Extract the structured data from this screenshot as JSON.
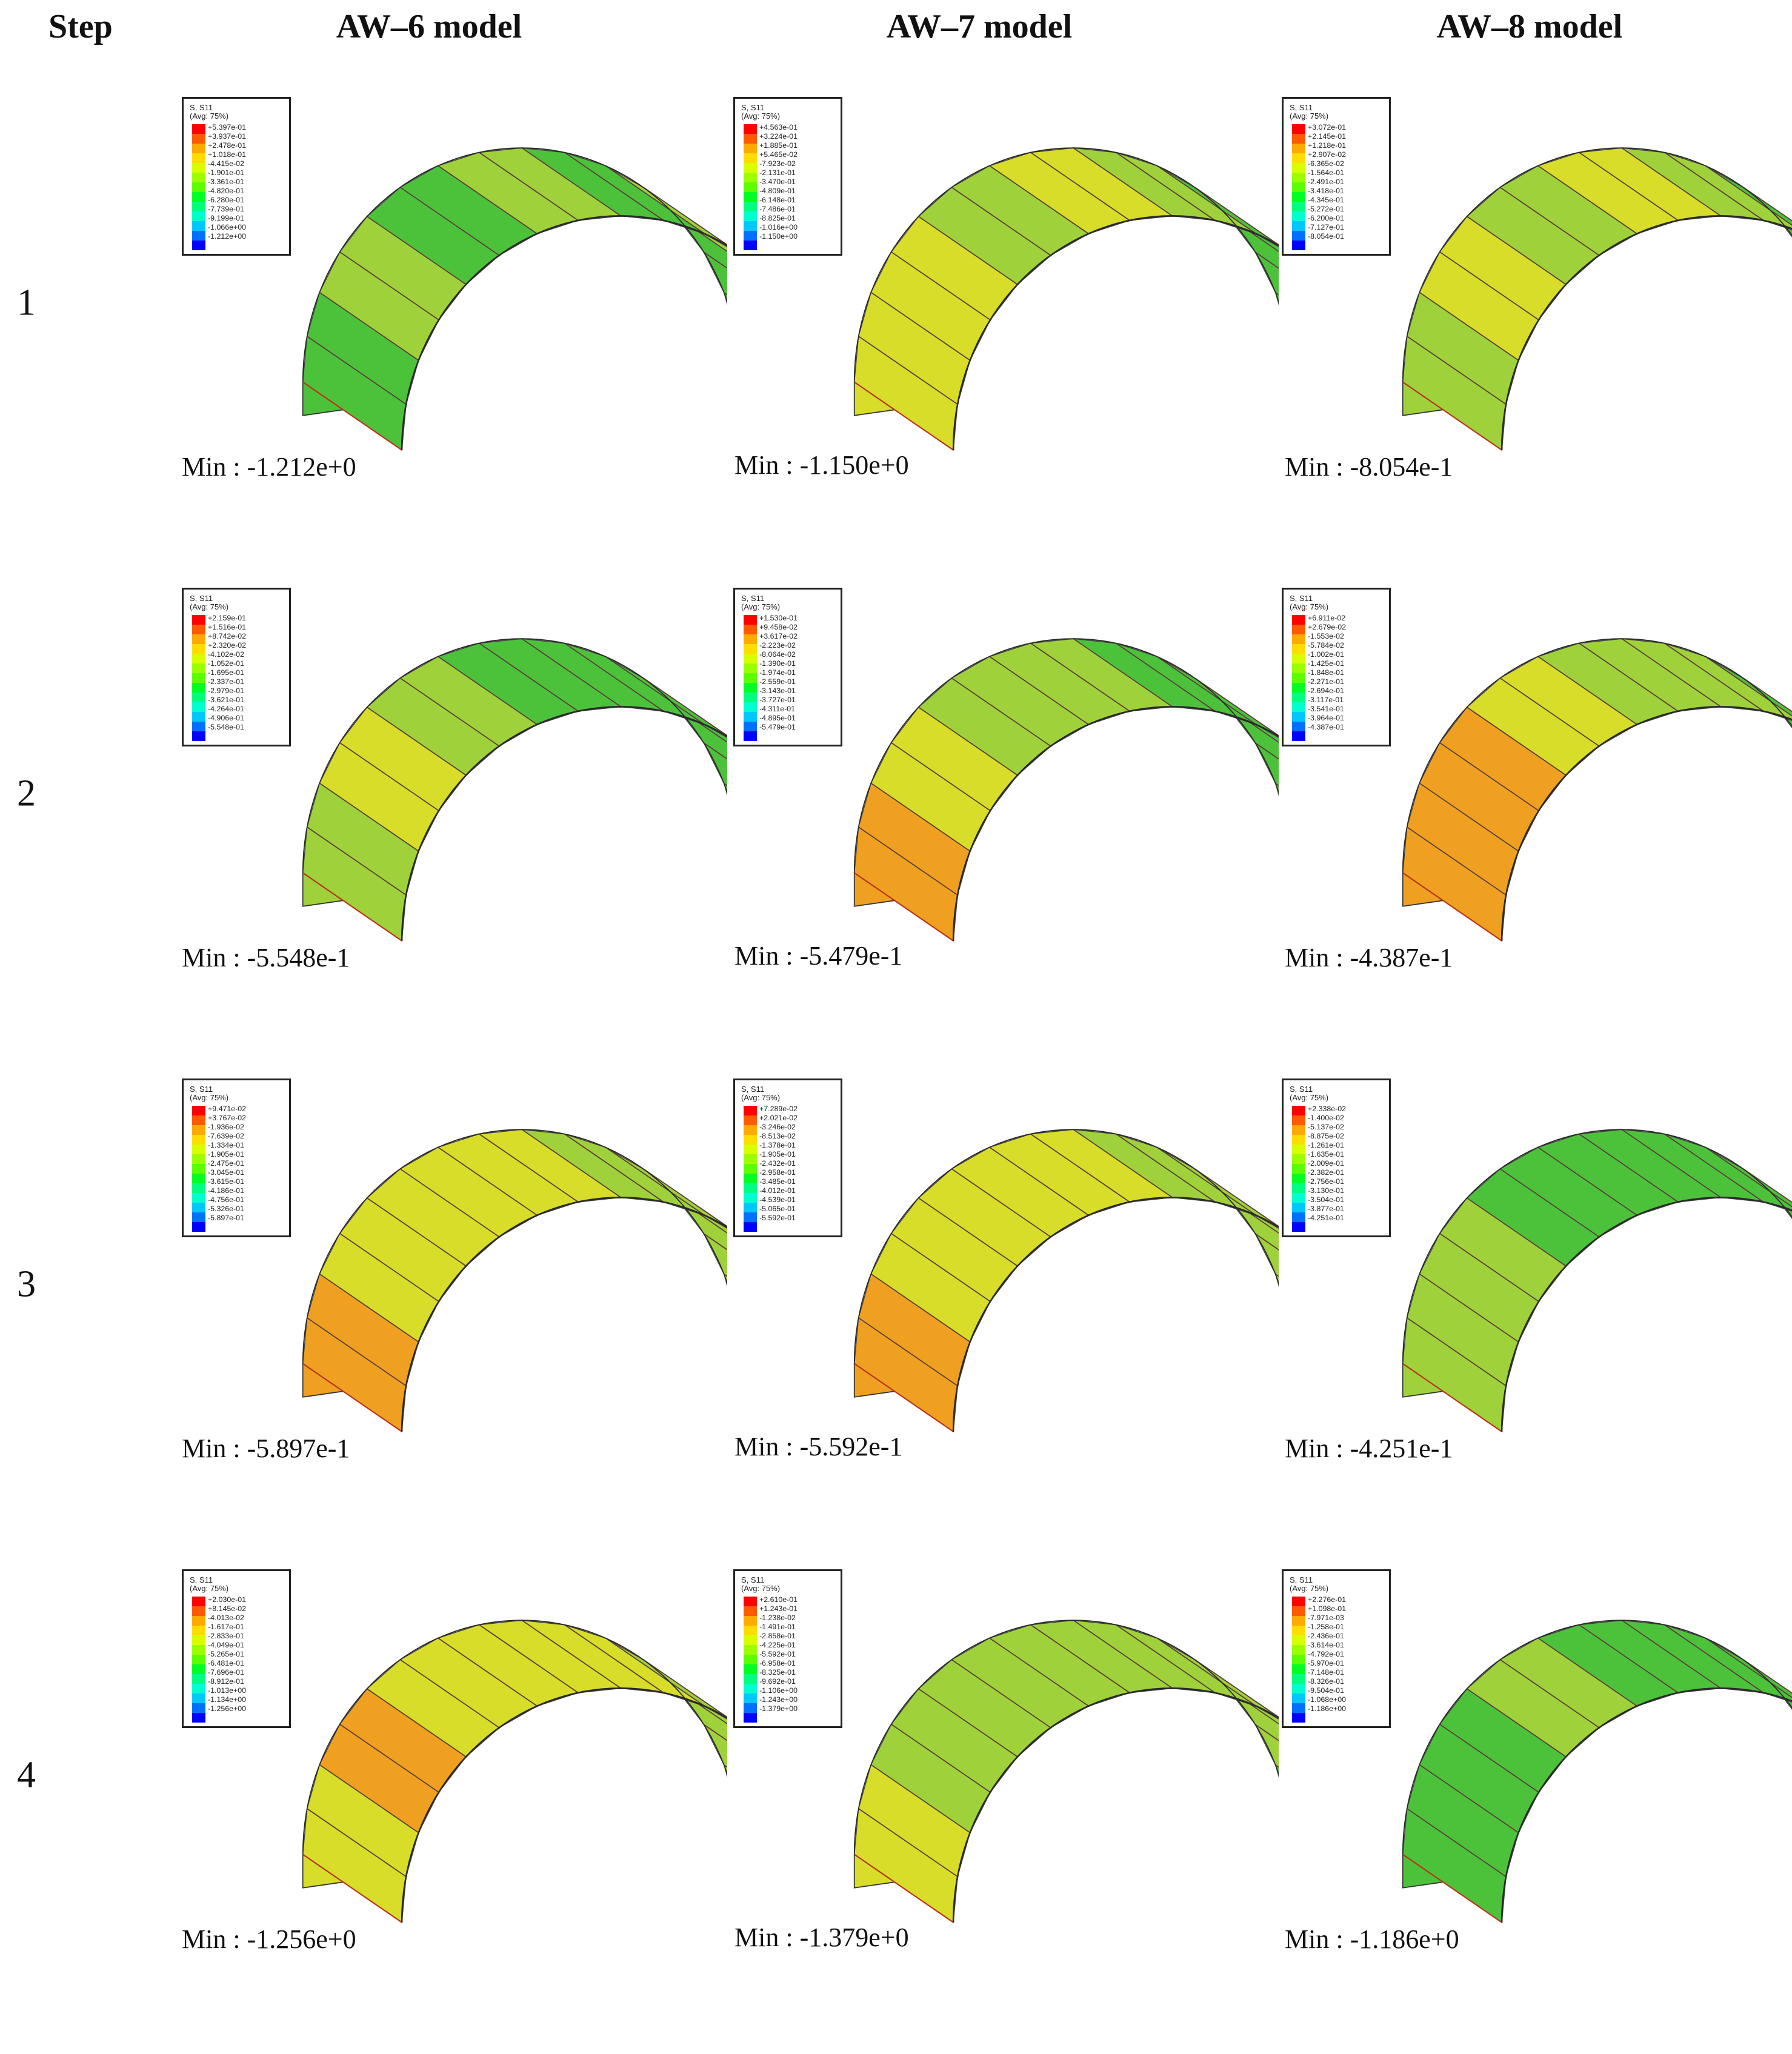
{
  "headers": {
    "step": "Step",
    "models": [
      "AW–6 model",
      "AW–7 model",
      "AW–8 model"
    ]
  },
  "legend": {
    "line1": "S, S11",
    "line2": "(Avg: 75%)",
    "colors": [
      "#ff0000",
      "#ff5a00",
      "#ffaa00",
      "#ffdd00",
      "#d8ff00",
      "#9cff00",
      "#5cff00",
      "#00ff22",
      "#00ff80",
      "#00ffd0",
      "#00c8ff",
      "#0070ff",
      "#0000ff"
    ]
  },
  "colors": {
    "face_base": "#9fd23a",
    "face_red": "#e23a12",
    "face_orange": "#f0a020",
    "face_yellow": "#d8dd2a",
    "face_green": "#4cc23b",
    "face_cyan": "#37b7a8",
    "face_blue": "#2e6fd6"
  },
  "steps": [
    {
      "label": "1",
      "cells": [
        {
          "min": "Min : -1.212e+0",
          "values": [
            "+5.397e-01",
            "+3.937e-01",
            "+2.478e-01",
            "+1.018e-01",
            "-4.415e-02",
            "-1.901e-01",
            "-3.361e-01",
            "-4.820e-01",
            "-6.280e-01",
            "-7.739e-01",
            "-9.199e-01",
            "-1.066e+00",
            "-1.212e+00"
          ]
        },
        {
          "min": "Min : -1.150e+0",
          "values": [
            "+4.563e-01",
            "+3.224e-01",
            "+1.885e-01",
            "+5.465e-02",
            "-7.923e-02",
            "-2.131e-01",
            "-3.470e-01",
            "-4.809e-01",
            "-6.148e-01",
            "-7.486e-01",
            "-8.825e-01",
            "-1.016e+00",
            "-1.150e+00"
          ]
        },
        {
          "min": "Min : -8.054e-1",
          "values": [
            "+3.072e-01",
            "+2.145e-01",
            "+1.218e-01",
            "+2.907e-02",
            "-6.365e-02",
            "-1.564e-01",
            "-2.491e-01",
            "-3.418e-01",
            "-4.345e-01",
            "-5.272e-01",
            "-6.200e-01",
            "-7.127e-01",
            "-8.054e-01"
          ]
        }
      ]
    },
    {
      "label": "2",
      "cells": [
        {
          "min": "Min : -5.548e-1",
          "values": [
            "+2.159e-01",
            "+1.516e-01",
            "+8.742e-02",
            "+2.320e-02",
            "-4.102e-02",
            "-1.052e-01",
            "-1.695e-01",
            "-2.337e-01",
            "-2.979e-01",
            "-3.621e-01",
            "-4.264e-01",
            "-4.906e-01",
            "-5.548e-01"
          ]
        },
        {
          "min": "Min : -5.479e-1",
          "values": [
            "+1.530e-01",
            "+9.458e-02",
            "+3.617e-02",
            "-2.223e-02",
            "-8.064e-02",
            "-1.390e-01",
            "-1.974e-01",
            "-2.559e-01",
            "-3.143e-01",
            "-3.727e-01",
            "-4.311e-01",
            "-4.895e-01",
            "-5.479e-01"
          ]
        },
        {
          "min": "Min : -4.387e-1",
          "values": [
            "+6.911e-02",
            "+2.679e-02",
            "-1.553e-02",
            "-5.784e-02",
            "-1.002e-01",
            "-1.425e-01",
            "-1.848e-01",
            "-2.271e-01",
            "-2.694e-01",
            "-3.117e-01",
            "-3.541e-01",
            "-3.964e-01",
            "-4.387e-01"
          ]
        }
      ]
    },
    {
      "label": "3",
      "cells": [
        {
          "min": "Min : -5.897e-1",
          "values": [
            "+9.471e-02",
            "+3.767e-02",
            "-1.936e-02",
            "-7.639e-02",
            "-1.334e-01",
            "-1.905e-01",
            "-2.475e-01",
            "-3.045e-01",
            "-3.615e-01",
            "-4.186e-01",
            "-4.756e-01",
            "-5.326e-01",
            "-5.897e-01"
          ]
        },
        {
          "min": "Min : -5.592e-1",
          "values": [
            "+7.289e-02",
            "+2.021e-02",
            "-3.246e-02",
            "-8.513e-02",
            "-1.378e-01",
            "-1.905e-01",
            "-2.432e-01",
            "-2.958e-01",
            "-3.485e-01",
            "-4.012e-01",
            "-4.539e-01",
            "-5.065e-01",
            "-5.592e-01"
          ]
        },
        {
          "min": "Min : -4.251e-1",
          "values": [
            "+2.338e-02",
            "-1.400e-02",
            "-5.137e-02",
            "-8.875e-02",
            "-1.261e-01",
            "-1.635e-01",
            "-2.009e-01",
            "-2.382e-01",
            "-2.756e-01",
            "-3.130e-01",
            "-3.504e-01",
            "-3.877e-01",
            "-4.251e-01"
          ]
        }
      ]
    },
    {
      "label": "4",
      "cells": [
        {
          "min": "Min : -1.256e+0",
          "values": [
            "+2.030e-01",
            "+8.145e-02",
            "-4.013e-02",
            "-1.617e-01",
            "-2.833e-01",
            "-4.049e-01",
            "-5.265e-01",
            "-6.481e-01",
            "-7.696e-01",
            "-8.912e-01",
            "-1.013e+00",
            "-1.134e+00",
            "-1.256e+00"
          ]
        },
        {
          "min": "Min : -1.379e+0",
          "values": [
            "+2.610e-01",
            "+1.243e-01",
            "-1.238e-02",
            "-1.491e-01",
            "-2.858e-01",
            "-4.225e-01",
            "-5.592e-01",
            "-6.958e-01",
            "-8.325e-01",
            "-9.692e-01",
            "-1.106e+00",
            "-1.243e+00",
            "-1.379e+00"
          ]
        },
        {
          "min": "Min : -1.186e+0",
          "values": [
            "+2.276e-01",
            "+1.098e-01",
            "-7.971e-03",
            "-1.258e-01",
            "-2.436e-01",
            "-3.614e-01",
            "-4.792e-01",
            "-5.970e-01",
            "-7.148e-01",
            "-8.326e-01",
            "-9.504e-01",
            "-1.068e+00",
            "-1.186e+00"
          ]
        }
      ]
    }
  ],
  "fields": [
    [
      {
        "stripes": [
          "#4cc23b",
          "#9fd23a",
          "#4cc23b",
          "#9fd23a",
          "#4cc23b",
          "#9fd23a",
          "#4cc23b",
          "#4cc23b"
        ],
        "spots": [
          "#e23a12",
          "#37b7a8"
        ],
        "bottom": "#4cc23b"
      },
      {
        "stripes": [
          "#d8dd2a",
          "#d8dd2a",
          "#9fd23a",
          "#d8dd2a",
          "#9fd23a",
          "#4cc23b",
          "#4cc23b",
          "#4cc23b"
        ],
        "spots": [
          "#e23a12",
          "#37b7a8"
        ],
        "bottom": "#e23a12"
      },
      {
        "stripes": [
          "#9fd23a",
          "#d8dd2a",
          "#9fd23a",
          "#d8dd2a",
          "#9fd23a",
          "#4cc23b",
          "#4cc23b",
          "#4cc23b"
        ],
        "spots": [
          "#e23a12",
          "#37b7a8"
        ],
        "bottom": "#e23a12"
      }
    ],
    [
      {
        "stripes": [
          "#9fd23a",
          "#d8dd2a",
          "#9fd23a",
          "#4cc23b",
          "#4cc23b",
          "#4cc23b",
          "#4cc23b",
          "#4cc23b"
        ],
        "spots": [
          "#37b7a8",
          "#37b7a8"
        ],
        "bottom": "#4cc23b"
      },
      {
        "stripes": [
          "#f0a020",
          "#d8dd2a",
          "#9fd23a",
          "#9fd23a",
          "#4cc23b",
          "#4cc23b",
          "#4cc23b",
          "#4cc23b"
        ],
        "spots": [
          "#37b7a8",
          "#4cc23b"
        ],
        "bottom": "#4cc23b"
      },
      {
        "stripes": [
          "#f0a020",
          "#f0a020",
          "#d8dd2a",
          "#9fd23a",
          "#9fd23a",
          "#4cc23b",
          "#4cc23b",
          "#4cc23b"
        ],
        "spots": [
          "#37b7a8",
          "#4cc23b"
        ],
        "bottom": "#4cc23b"
      }
    ],
    [
      {
        "stripes": [
          "#f0a020",
          "#d8dd2a",
          "#d8dd2a",
          "#d8dd2a",
          "#9fd23a",
          "#9fd23a",
          "#9fd23a",
          "#9fd23a"
        ],
        "spots": [
          "#37b7a8",
          "#37b7a8"
        ],
        "bottom": "#37b7a8"
      },
      {
        "stripes": [
          "#f0a020",
          "#d8dd2a",
          "#d8dd2a",
          "#d8dd2a",
          "#9fd23a",
          "#9fd23a",
          "#9fd23a",
          "#9fd23a"
        ],
        "spots": [
          "#37b7a8",
          "#37b7a8"
        ],
        "bottom": "#37b7a8"
      },
      {
        "stripes": [
          "#9fd23a",
          "#9fd23a",
          "#4cc23b",
          "#4cc23b",
          "#4cc23b",
          "#4cc23b",
          "#4cc23b",
          "#4cc23b"
        ],
        "spots": [
          "#2e6fd6",
          "#2e6fd6"
        ],
        "bottom": "#2e6fd6"
      }
    ],
    [
      {
        "stripes": [
          "#d8dd2a",
          "#f0a020",
          "#d8dd2a",
          "#d8dd2a",
          "#d8dd2a",
          "#9fd23a",
          "#9fd23a",
          "#9fd23a"
        ],
        "spots": [
          "#4cc23b",
          "#4cc23b"
        ],
        "bottom": "#4cc23b"
      },
      {
        "stripes": [
          "#d8dd2a",
          "#9fd23a",
          "#9fd23a",
          "#9fd23a",
          "#9fd23a",
          "#9fd23a",
          "#9fd23a",
          "#4cc23b"
        ],
        "spots": [
          "#4cc23b",
          "#4cc23b"
        ],
        "bottom": "#4cc23b"
      },
      {
        "stripes": [
          "#4cc23b",
          "#4cc23b",
          "#9fd23a",
          "#4cc23b",
          "#4cc23b",
          "#4cc23b",
          "#4cc23b",
          "#4cc23b"
        ],
        "spots": [
          "#4cc23b",
          "#4cc23b"
        ],
        "bottom": "#4cc23b"
      }
    ]
  ]
}
